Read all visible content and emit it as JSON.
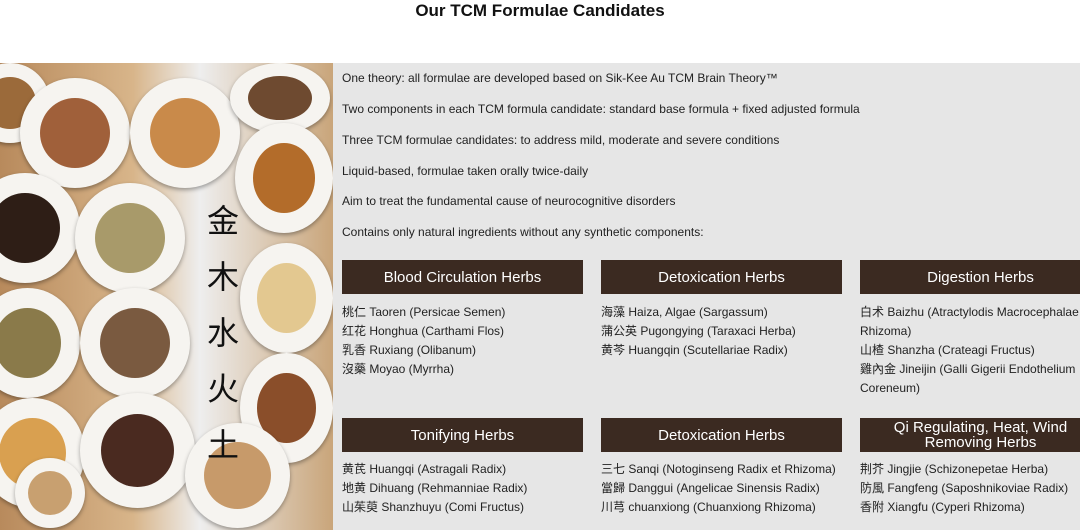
{
  "title": "Our TCM Formulae Candidates",
  "image_text": "金木水火土",
  "bullets": [
    "One theory: all formulae are developed based on Sik-Kee Au TCM Brain Theory™",
    "Two components in each TCM formula candidate: standard base formula + fixed adjusted formula",
    "Three TCM formulae candidates: to address mild, moderate and severe conditions",
    "Liquid-based, formulae taken orally twice-daily",
    "Aim to treat the fundamental cause of neurocognitive disorders",
    "Contains only natural ingredients without any synthetic components:"
  ],
  "groups": [
    {
      "title": "Blood Circulation Herbs",
      "items": [
        "桃仁 Taoren (Persicae Semen)",
        "红花 Honghua (Carthami Flos)",
        "乳香 Ruxiang (Olibanum)",
        "沒藥 Moyao (Myrrha)"
      ]
    },
    {
      "title": "Detoxication Herbs",
      "items": [
        "海藻 Haiza, Algae (Sargassum)",
        "蒲公英 Pugongying (Taraxaci Herba)",
        "黄芩 Huangqin (Scutellariae Radix)"
      ]
    },
    {
      "title": "Digestion Herbs",
      "items": [
        "白术 Baizhu (Atractylodis Macrocephalae Rhizoma)",
        "山楂 Shanzha (Crateagi Fructus)",
        "雞內金 Jineijin (Galli Gigerii Endothelium Coreneum)"
      ]
    },
    {
      "title": "Tonifying Herbs",
      "items": [
        "黄芪 Huangqi (Astragali Radix)",
        "地黄 Dihuang (Rehmanniae Radix)",
        "山茱萸 Shanzhuyu (Comi Fructus)"
      ]
    },
    {
      "title": "Detoxication Herbs",
      "items": [
        "三七 Sanqi (Notoginseng Radix et Rhizoma)",
        "當歸 Danggui (Angelicae Sinensis Radix)",
        "川芎 chuanxiong (Chuanxiong Rhizoma)"
      ]
    },
    {
      "title": "Qi Regulating, Heat, Wind Removing Herbs",
      "items": [
        "荆芥 Jingjie (Schizonepetae Herba)",
        "防風 Fangfeng (Saposhnikoviae Radix)",
        "香附 Xiangfu (Cyperi Rhizoma)"
      ]
    }
  ],
  "colors": {
    "header_bg": "#3b2a21",
    "panel_bg": "#e6e6e6"
  }
}
